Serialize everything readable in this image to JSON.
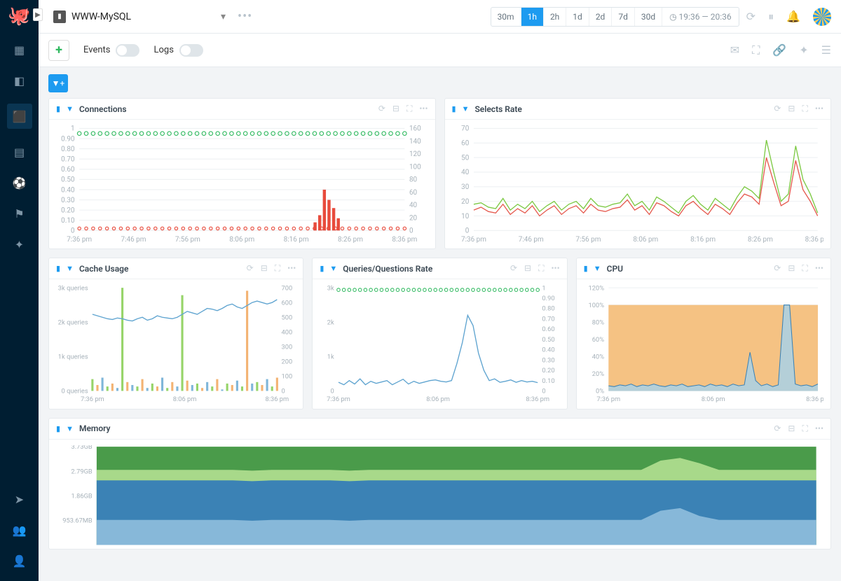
{
  "dashboard_name": "WWW-MySQL",
  "time": {
    "options": [
      "30m",
      "1h",
      "2h",
      "1d",
      "2d",
      "7d",
      "30d"
    ],
    "active": "1h",
    "range": "19:36 — 20:36"
  },
  "toolbar": {
    "events": "Events",
    "logs": "Logs"
  },
  "panels": {
    "connections": {
      "title": "Connections",
      "xlabels": [
        "7:36 pm",
        "7:46 pm",
        "7:56 pm",
        "8:06 pm",
        "8:16 pm",
        "8:26 pm",
        "8:36 pm"
      ],
      "ylabels_l": [
        "0",
        "0.10",
        "0.20",
        "0.30",
        "0.40",
        "0.50",
        "0.60",
        "0.70",
        "0.80",
        "0.90",
        "1"
      ],
      "ylabels_r": [
        "0",
        "20",
        "40",
        "60",
        "80",
        "100",
        "120",
        "140",
        "160"
      ],
      "green_dot_y": 0.95,
      "green_line_y": 0.4,
      "bars": {
        "x_start": 0.72,
        "vals": [
          0.08,
          0.15,
          0.4,
          0.3,
          0.22,
          0.12
        ],
        "color": "#e84b3c"
      },
      "red_dot_y": 0.02,
      "colors": {
        "green": "#2fb95f",
        "red": "#e84b3c",
        "grid": "#eef1f3"
      }
    },
    "selects": {
      "title": "Selects Rate",
      "xlabels": [
        "7:36 pm",
        "7:46 pm",
        "7:56 pm",
        "8:06 pm",
        "8:16 pm",
        "8:26 pm",
        "8:36 pm"
      ],
      "ylabels": [
        "0",
        "10",
        "20",
        "30",
        "40",
        "50",
        "60",
        "70"
      ],
      "green": [
        18,
        19,
        16,
        15,
        22,
        14,
        18,
        15,
        20,
        13,
        17,
        20,
        14,
        18,
        20,
        15,
        22,
        17,
        16,
        18,
        19,
        25,
        17,
        20,
        14,
        23,
        20,
        16,
        12,
        20,
        24,
        18,
        14,
        22,
        18,
        14,
        23,
        30,
        27,
        22,
        62,
        40,
        20,
        25,
        58,
        35,
        25,
        12
      ],
      "red": [
        14,
        16,
        13,
        12,
        18,
        11,
        15,
        12,
        17,
        10,
        14,
        17,
        11,
        15,
        17,
        12,
        18,
        14,
        13,
        15,
        16,
        21,
        14,
        17,
        11,
        19,
        17,
        13,
        10,
        17,
        20,
        15,
        11,
        18,
        15,
        11,
        19,
        25,
        23,
        18,
        50,
        33,
        17,
        20,
        48,
        28,
        20,
        10
      ],
      "colors": {
        "green": "#7cc943",
        "red": "#e55a4f"
      }
    },
    "cache": {
      "title": "Cache Usage",
      "xlabels": [
        "7:36 pm",
        "8:06 pm",
        "8:36 pm"
      ],
      "ylabels_l": [
        "0 queries",
        "1k queries",
        "2k queries",
        "3k queries"
      ],
      "ylabels_r": [
        "0",
        "100",
        "200",
        "300",
        "400",
        "500",
        "600",
        "700"
      ],
      "blue": [
        520,
        510,
        500,
        490,
        485,
        495,
        490,
        480,
        475,
        490,
        500,
        480,
        490,
        510,
        500,
        495,
        490,
        500,
        520,
        540,
        530,
        520,
        540,
        560,
        555,
        545,
        560,
        580,
        590,
        570,
        560,
        580,
        600,
        610,
        600,
        590,
        600,
        620
      ],
      "bars": [
        80,
        40,
        90,
        30,
        50,
        20,
        700,
        60,
        40,
        30,
        80,
        20,
        50,
        30,
        90,
        20,
        60,
        30,
        650,
        70,
        40,
        50,
        20,
        60,
        30,
        80,
        10,
        50,
        40,
        70,
        30,
        680,
        50,
        60,
        40,
        80,
        30,
        90
      ],
      "colors": {
        "blue": "#5fa4d0",
        "bar": "#7cc943",
        "bar2": "#f0a050"
      }
    },
    "queries": {
      "title": "Queries/Questions Rate",
      "xlabels": [
        "7:36 pm",
        "8:06 pm",
        "8:36 pm"
      ],
      "ylabels_l": [
        "0",
        "1k",
        "2k",
        "3k"
      ],
      "ylabels_r": [
        "0",
        "0.10",
        "0.20",
        "0.30",
        "0.40",
        "0.50",
        "0.60",
        "0.70",
        "0.80",
        "0.90",
        "1"
      ],
      "green_dot_y": 0.98,
      "blue": [
        250,
        180,
        300,
        200,
        350,
        180,
        280,
        220,
        260,
        300,
        180,
        260,
        340,
        200,
        280,
        220,
        260,
        300,
        320,
        280,
        260,
        300,
        800,
        1400,
        2200,
        1900,
        1100,
        600,
        300,
        350,
        250,
        280,
        320,
        250,
        300,
        260,
        280,
        240
      ],
      "colors": {
        "green": "#2fb95f",
        "blue": "#5fa4d0"
      }
    },
    "cpu": {
      "title": "CPU",
      "xlabels": [
        "7:36 pm",
        "8:06 pm",
        "8:36 pm"
      ],
      "ylabels": [
        "0%",
        "20%",
        "40%",
        "60%",
        "80%",
        "100%",
        "120%"
      ],
      "fill_color": "#f5c283",
      "spike_color": "#a8d1e8",
      "base": [
        6,
        5,
        7,
        6,
        8,
        5,
        7,
        6,
        8,
        6,
        5,
        7,
        6,
        8,
        5,
        6,
        7,
        5,
        8,
        6,
        7,
        5,
        8,
        6,
        7,
        45,
        12,
        6,
        8,
        5,
        7,
        100,
        100,
        8,
        6,
        7,
        5,
        8
      ]
    },
    "memory": {
      "title": "Memory",
      "ylabels": [
        "953.67MB",
        "1.86GB",
        "2.79GB",
        "3.73GB"
      ],
      "layers": [
        {
          "color": "#4a9b4a",
          "vals": [
            3.73,
            3.73,
            3.73,
            3.73,
            3.73,
            3.73,
            3.73,
            3.73,
            3.73,
            3.73,
            3.73,
            3.73,
            3.73,
            3.73,
            3.73,
            3.73,
            3.73,
            3.73,
            3.73,
            3.73,
            3.73,
            3.73,
            3.73,
            3.73,
            3.73,
            3.73,
            3.73,
            3.73,
            3.73,
            3.73,
            3.73,
            3.73,
            3.73,
            3.73,
            3.73,
            3.73,
            3.73,
            3.73
          ]
        },
        {
          "color": "#a8d98a",
          "vals": [
            2.85,
            2.85,
            2.85,
            2.85,
            2.85,
            2.85,
            2.85,
            2.85,
            2.82,
            2.85,
            2.85,
            2.85,
            2.85,
            2.82,
            2.85,
            2.85,
            2.85,
            2.85,
            2.85,
            2.85,
            2.85,
            2.85,
            2.85,
            2.85,
            2.85,
            2.85,
            2.85,
            2.85,
            2.85,
            3.2,
            3.3,
            3.1,
            2.85,
            2.85,
            2.85,
            2.85,
            2.85,
            2.85
          ]
        },
        {
          "color": "#3b82b5",
          "vals": [
            2.45,
            2.45,
            2.45,
            2.45,
            2.45,
            2.45,
            2.45,
            2.45,
            2.42,
            2.45,
            2.45,
            2.45,
            2.45,
            2.42,
            2.45,
            2.45,
            2.45,
            2.45,
            2.45,
            2.45,
            2.45,
            2.45,
            2.45,
            2.45,
            2.45,
            2.45,
            2.45,
            2.45,
            2.45,
            2.45,
            2.45,
            2.45,
            2.45,
            2.45,
            2.45,
            2.45,
            2.45,
            2.45
          ]
        },
        {
          "color": "#87b8d9",
          "vals": [
            0.95,
            0.95,
            0.95,
            0.95,
            0.95,
            0.95,
            0.95,
            0.95,
            0.92,
            0.95,
            0.95,
            0.95,
            0.95,
            0.92,
            0.95,
            0.95,
            0.95,
            0.95,
            0.95,
            0.95,
            0.95,
            0.95,
            0.95,
            0.95,
            0.95,
            0.95,
            0.95,
            0.95,
            0.95,
            1.3,
            1.4,
            1.1,
            0.95,
            0.95,
            0.95,
            0.95,
            0.95,
            0.95
          ]
        }
      ],
      "ymax": 3.73
    }
  }
}
